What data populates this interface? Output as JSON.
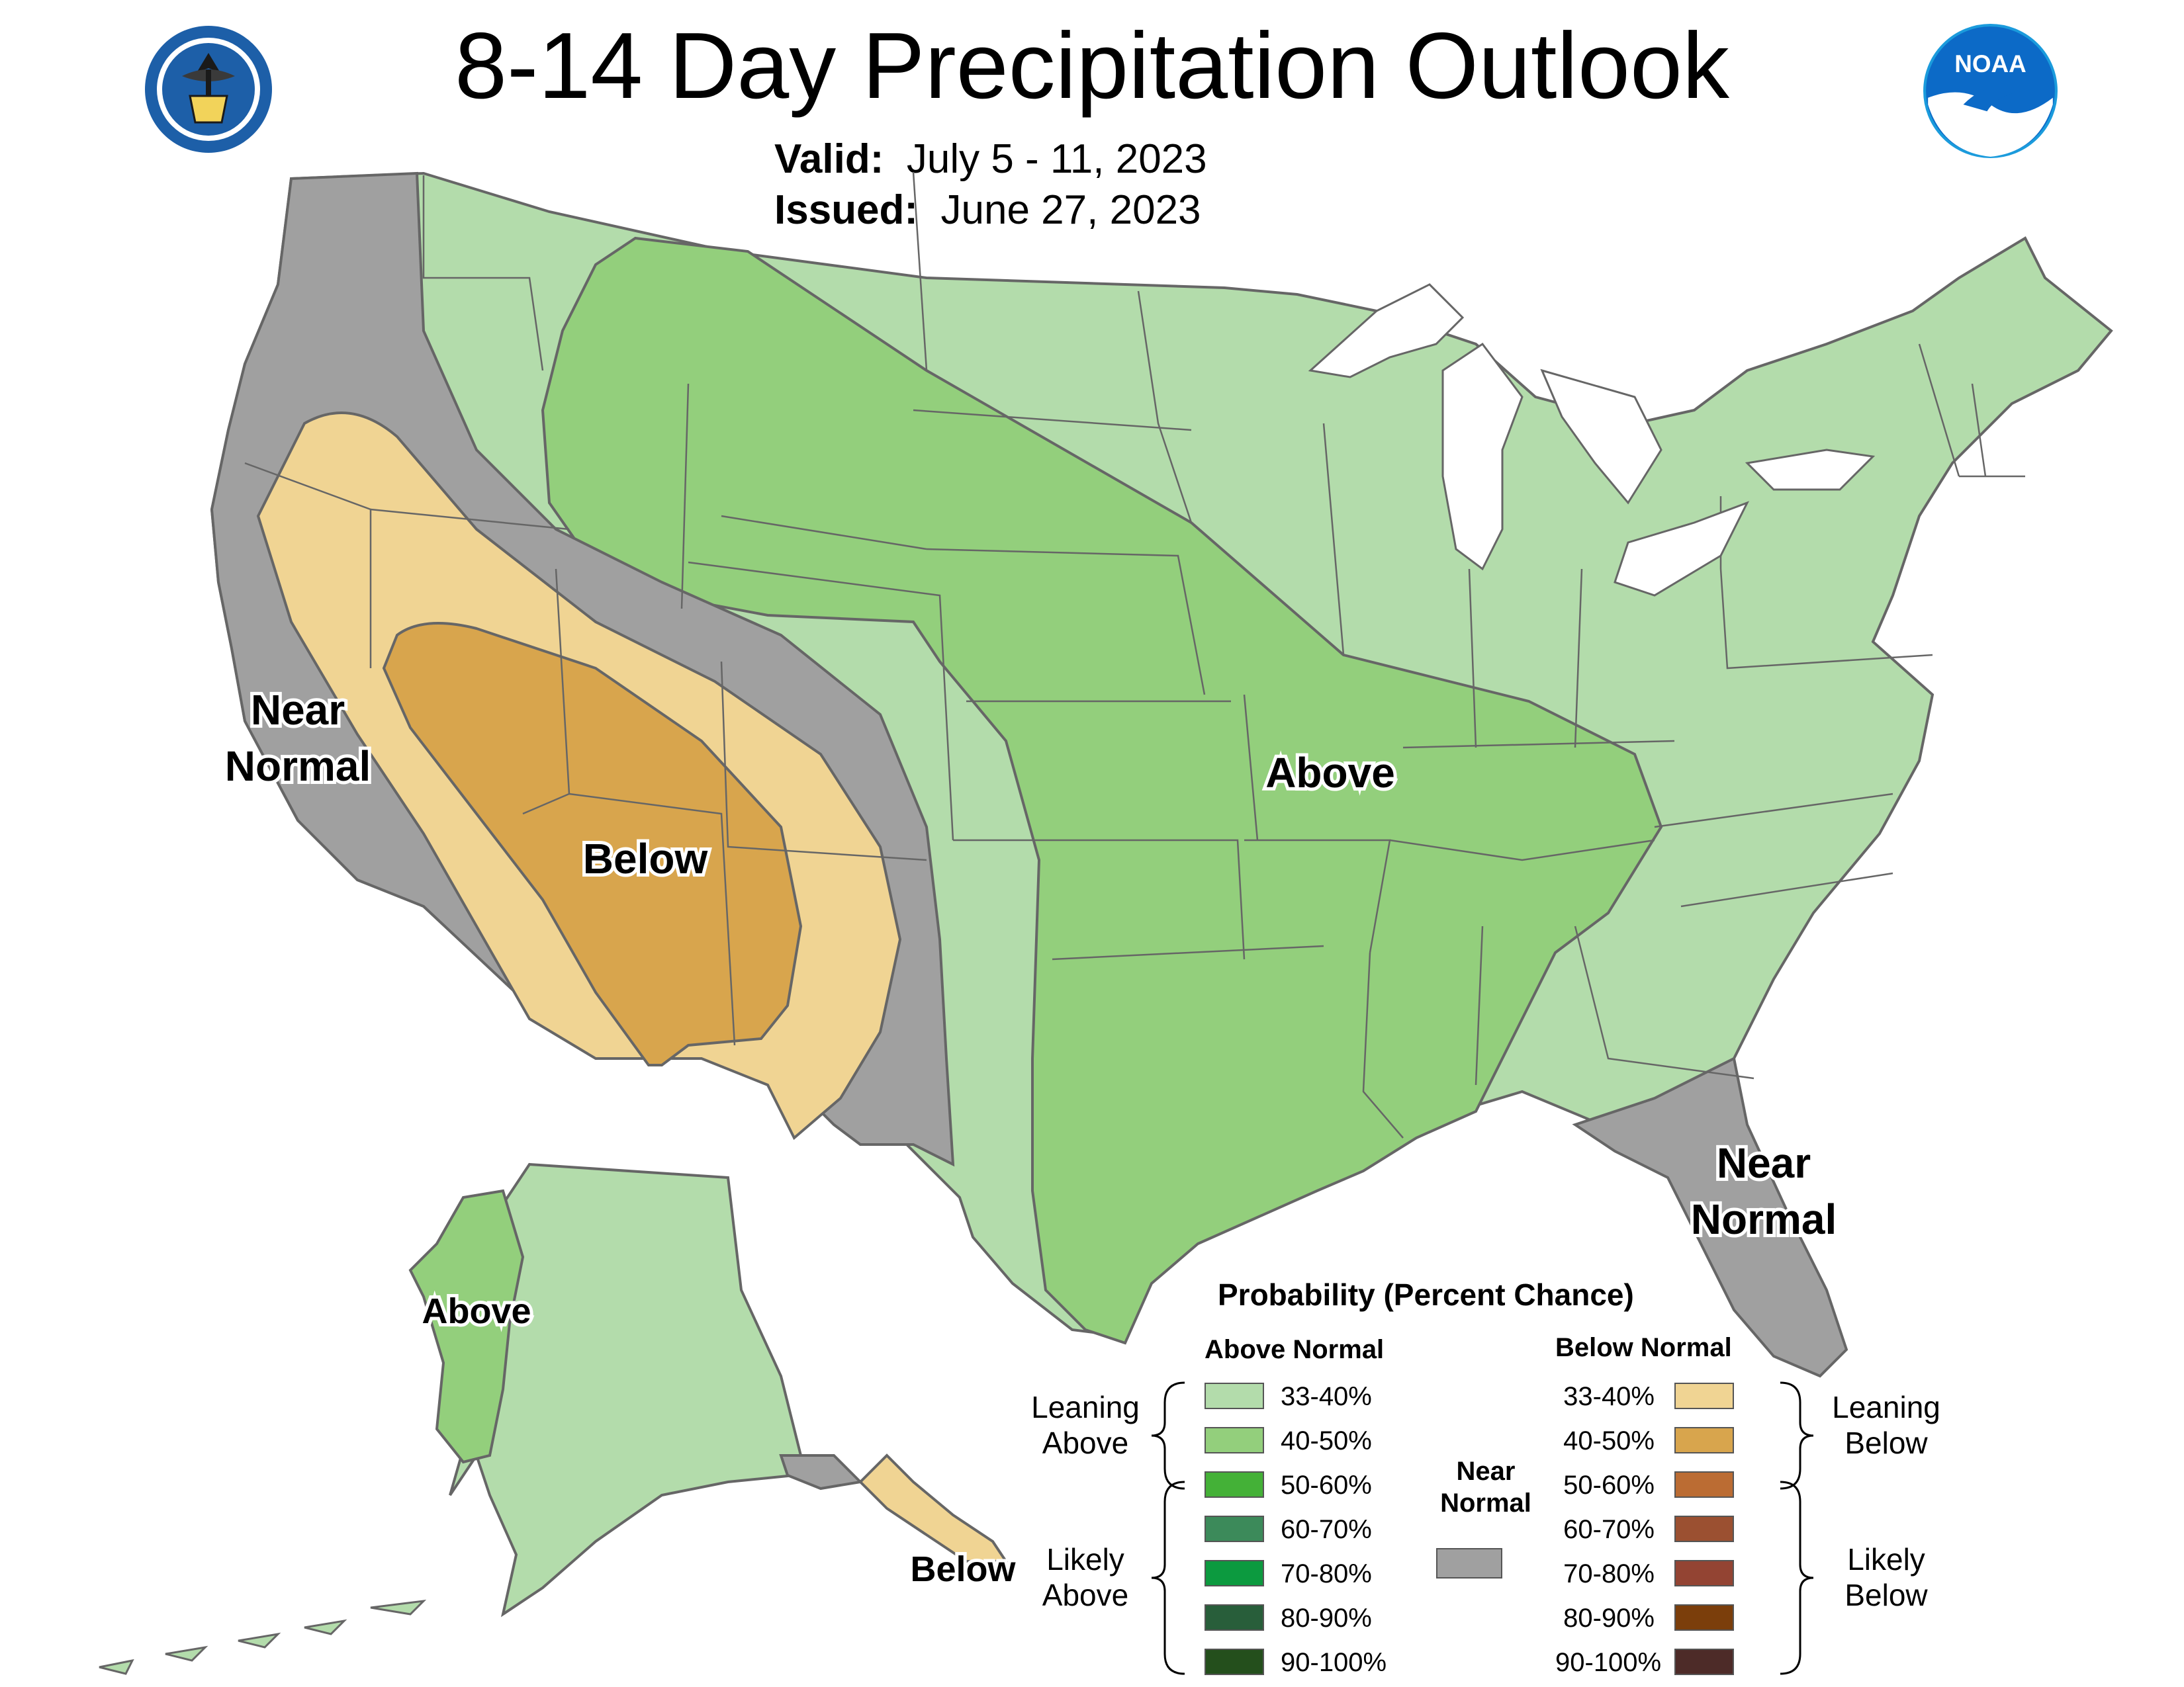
{
  "title": "8-14 Day Precipitation Outlook",
  "valid_label": "Valid:",
  "valid_value": "July 5 - 11, 2023",
  "issued_label": "Issued:",
  "issued_value": "June 27, 2023",
  "logos": {
    "left": "commerce-seal-logo",
    "right": "noaa-logo",
    "right_text": "NOAA"
  },
  "regions": {
    "near_normal_west_1": "Near",
    "near_normal_west_2": "Normal",
    "below_sw": "Below",
    "above_central": "Above",
    "near_normal_fl_1": "Near",
    "near_normal_fl_2": "Normal",
    "above_alaska": "Above",
    "below_alaska": "Below"
  },
  "legend": {
    "title": "Probability (Percent Chance)",
    "above_header": "Above Normal",
    "below_header": "Below Normal",
    "near_1": "Near",
    "near_2": "Normal",
    "near_color": "#a0a0a0",
    "leaning_above_1": "Leaning",
    "leaning_above_2": "Above",
    "likely_above_1": "Likely",
    "likely_above_2": "Above",
    "leaning_below_1": "Leaning",
    "leaning_below_2": "Below",
    "likely_below_1": "Likely",
    "likely_below_2": "Below",
    "above": [
      {
        "label": "33-40%",
        "color": "#b3dcab"
      },
      {
        "label": "40-50%",
        "color": "#93cf7c"
      },
      {
        "label": "50-60%",
        "color": "#44b137"
      },
      {
        "label": "60-70%",
        "color": "#3c8a5a"
      },
      {
        "label": "70-80%",
        "color": "#0c9a3f"
      },
      {
        "label": "80-90%",
        "color": "#285e3a"
      },
      {
        "label": "90-100%",
        "color": "#244f1c"
      }
    ],
    "below": [
      {
        "label": "33-40%",
        "color": "#f0d493"
      },
      {
        "label": "40-50%",
        "color": "#d8a54d"
      },
      {
        "label": "50-60%",
        "color": "#bb6c33"
      },
      {
        "label": "60-70%",
        "color": "#9b5031"
      },
      {
        "label": "70-80%",
        "color": "#934433"
      },
      {
        "label": "80-90%",
        "color": "#7b3e0b"
      },
      {
        "label": "90-100%",
        "color": "#4d2b28"
      }
    ]
  },
  "category_colors": {
    "leaning_above": "#b3dcab",
    "above_40_50": "#93cf7c",
    "near_normal": "#a0a0a0",
    "leaning_below": "#f0d493",
    "below_40_50": "#d8a54d",
    "lakes": "#ffffff"
  }
}
